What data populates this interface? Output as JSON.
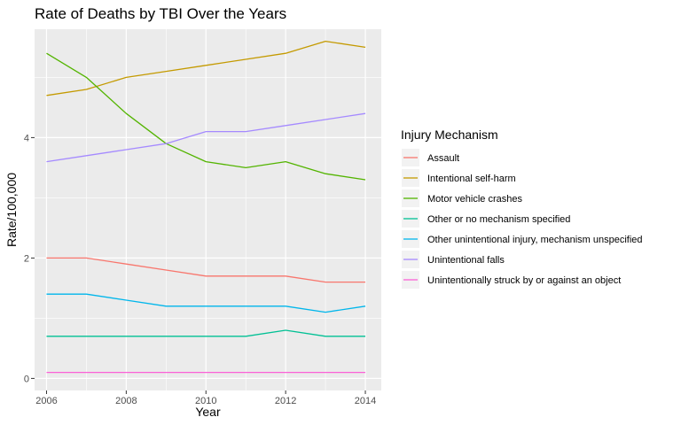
{
  "chart_data": {
    "type": "line",
    "title": "Rate of Deaths by TBI Over the Years",
    "xlabel": "Year",
    "ylabel": "Rate/100,000",
    "x": [
      2006,
      2007,
      2008,
      2009,
      2010,
      2011,
      2012,
      2013,
      2014
    ],
    "xlim": [
      2005.7,
      2014.4
    ],
    "ylim": [
      -0.2,
      5.8
    ],
    "xticks": [
      2006,
      2008,
      2010,
      2012,
      2014
    ],
    "yticks": [
      0,
      2,
      4
    ],
    "grid": true,
    "legend_title": "Injury Mechanism",
    "legend_position": "right",
    "series": [
      {
        "name": "Assault",
        "color": "#F8766D",
        "values": [
          2.0,
          2.0,
          1.9,
          1.8,
          1.7,
          1.7,
          1.7,
          1.6,
          1.6
        ]
      },
      {
        "name": "Intentional self-harm",
        "color": "#C49A00",
        "values": [
          4.7,
          4.8,
          5.0,
          5.1,
          5.2,
          5.3,
          5.4,
          5.6,
          5.5
        ]
      },
      {
        "name": "Motor vehicle crashes",
        "color": "#53B400",
        "values": [
          5.4,
          5.0,
          4.4,
          3.9,
          3.6,
          3.5,
          3.6,
          3.4,
          3.3
        ]
      },
      {
        "name": "Other or no mechanism specified",
        "color": "#00C094",
        "values": [
          0.7,
          0.7,
          0.7,
          0.7,
          0.7,
          0.7,
          0.8,
          0.7,
          0.7
        ]
      },
      {
        "name": "Other unintentional injury, mechanism unspecified",
        "color": "#00B6EB",
        "values": [
          1.4,
          1.4,
          1.3,
          1.2,
          1.2,
          1.2,
          1.2,
          1.1,
          1.2
        ]
      },
      {
        "name": "Unintentional falls",
        "color": "#A58AFF",
        "values": [
          3.6,
          3.7,
          3.8,
          3.9,
          4.1,
          4.1,
          4.2,
          4.3,
          4.4
        ]
      },
      {
        "name": "Unintentionally struck by or against an object",
        "color": "#FB61D7",
        "values": [
          0.1,
          0.1,
          0.1,
          0.1,
          0.1,
          0.1,
          0.1,
          0.1,
          0.1
        ]
      }
    ]
  }
}
